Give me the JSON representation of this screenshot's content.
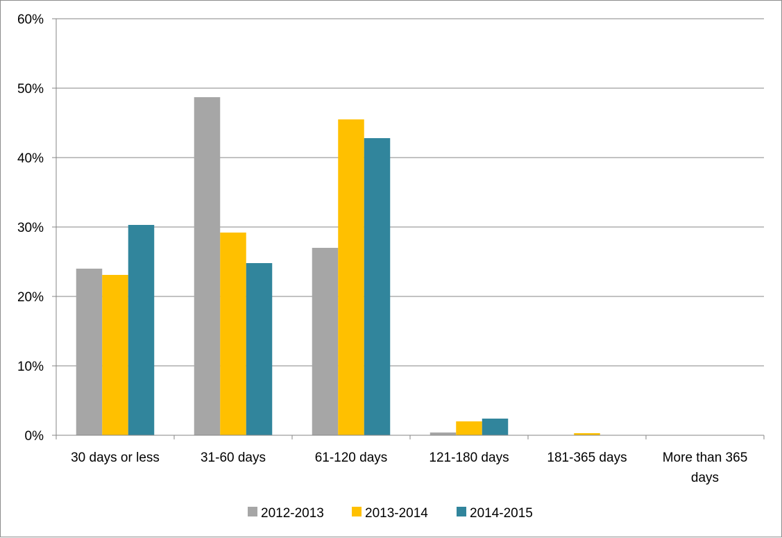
{
  "chart_data": {
    "type": "bar",
    "categories": [
      "30 days or less",
      "31-60 days",
      "61-120 days",
      "121-180 days",
      "181-365 days",
      "More than 365 days"
    ],
    "category_lines": [
      [
        "30 days or less"
      ],
      [
        "31-60 days"
      ],
      [
        "61-120 days"
      ],
      [
        "121-180 days"
      ],
      [
        "181-365 days"
      ],
      [
        "More than 365",
        "days"
      ]
    ],
    "series": [
      {
        "name": "2012-2013",
        "color": "#a6a6a6",
        "values": [
          24.0,
          48.7,
          27.0,
          0.4,
          0.0,
          0.0
        ]
      },
      {
        "name": "2013-2014",
        "color": "#ffc000",
        "values": [
          23.1,
          29.2,
          45.5,
          2.0,
          0.3,
          0.0
        ]
      },
      {
        "name": "2014-2015",
        "color": "#31859c",
        "values": [
          30.3,
          24.8,
          42.8,
          2.4,
          0.0,
          0.0
        ]
      }
    ],
    "ylim": [
      0,
      60
    ],
    "yticks": [
      0,
      10,
      20,
      30,
      40,
      50,
      60
    ],
    "ytick_labels": [
      "0%",
      "10%",
      "20%",
      "30%",
      "40%",
      "50%",
      "60%"
    ],
    "grid": true,
    "legend_position": "bottom"
  }
}
